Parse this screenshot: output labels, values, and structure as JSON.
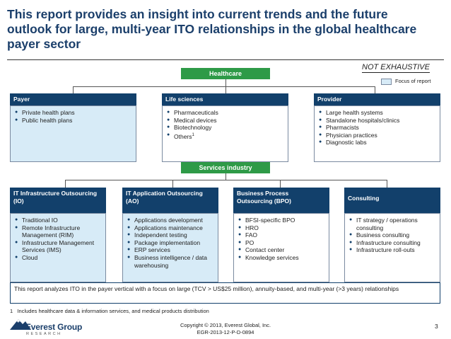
{
  "title": "This report provides an insight into current trends and the future outlook for large, multi-year ITO relationships in the global healthcare payer sector",
  "not_exhaustive": "NOT EXHAUSTIVE",
  "legend": {
    "label": "Focus of report",
    "color": "#d7ebf7"
  },
  "healthcare": {
    "label": "Healthcare",
    "categories": [
      {
        "head": "Payer",
        "focus": true,
        "items": [
          "Private health plans",
          "Public health plans"
        ]
      },
      {
        "head": "Life sciences",
        "focus": false,
        "items": [
          "Pharmaceuticals",
          "Medical devices",
          "Biotechnology",
          "Others"
        ],
        "footnote_mark": "1"
      },
      {
        "head": "Provider",
        "focus": false,
        "items": [
          "Large health systems",
          "Standalone hospitals/clinics",
          "Pharmacists",
          "Physician practices",
          "Diagnostic labs"
        ]
      }
    ]
  },
  "services": {
    "label": "Services industry",
    "categories": [
      {
        "head": "IT Infrastructure Outsourcing (IO)",
        "focus": true,
        "items": [
          "Traditional IO",
          "Remote Infrastructure Management (RIM)",
          "Infrastructure Management Services (IMS)",
          "Cloud"
        ]
      },
      {
        "head": "IT Application Outsourcing (AO)",
        "focus": true,
        "items": [
          "Applications development",
          "Applications maintenance",
          "Independent testing",
          "Package implementation",
          "ERP services",
          "Business intelligence / data warehousing"
        ]
      },
      {
        "head": "Business Process Outsourcing (BPO)",
        "focus": false,
        "items": [
          "BFSI-specific BPO",
          "HRO",
          "FAO",
          "PO",
          "Contact center",
          "Knowledge services"
        ]
      },
      {
        "head": "Consulting",
        "focus": false,
        "items": [
          "IT strategy / operations consulting",
          "Business consulting",
          "Infrastructure consulting",
          "Infrastructure roll-outs"
        ]
      }
    ]
  },
  "note": "This report analyzes ITO in the payer vertical with a focus on large (TCV > US$25 million), annuity-based, and multi-year (>3 years) relationships",
  "footnote": {
    "mark": "1",
    "text": "Includes healthcare data & information services, and medical products distribution"
  },
  "logo": {
    "name": "Everest Group",
    "sub": "RESEARCH"
  },
  "copyright": "Copyright © 2013, Everest Global, Inc.",
  "doc_id": "EGR-2013-12-P-D-0894",
  "page_number": "3",
  "colors": {
    "title": "#1b3f6b",
    "header": "#12406b",
    "green": "#2e9a47",
    "focus": "#d7ebf7"
  }
}
